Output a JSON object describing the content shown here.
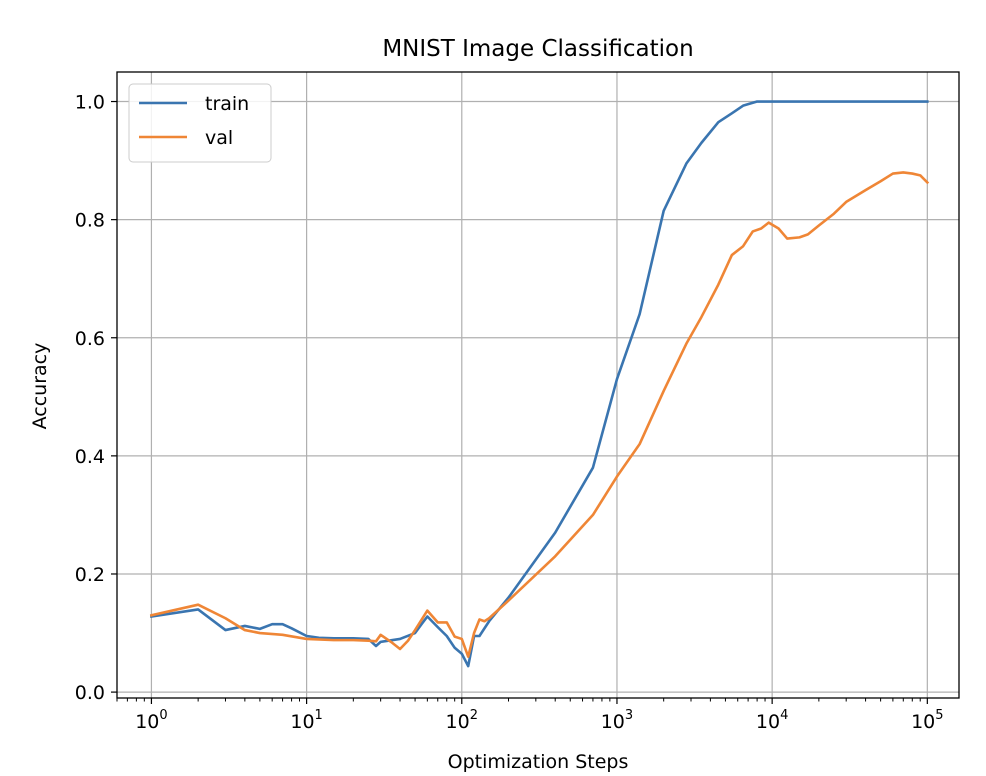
{
  "chart_data": {
    "type": "line",
    "title": "MNIST Image Classification",
    "xlabel": "Optimization Steps",
    "ylabel": "Accuracy",
    "xscale": "log",
    "xlim": [
      0.6,
      160000
    ],
    "ylim": [
      -0.01,
      1.05
    ],
    "grid": true,
    "legend": "top-left",
    "x_ticks": [
      {
        "value": 1,
        "label": "10",
        "exp": "0"
      },
      {
        "value": 10,
        "label": "10",
        "exp": "1"
      },
      {
        "value": 100,
        "label": "10",
        "exp": "2"
      },
      {
        "value": 1000,
        "label": "10",
        "exp": "3"
      },
      {
        "value": 10000,
        "label": "10",
        "exp": "4"
      },
      {
        "value": 100000,
        "label": "10",
        "exp": "5"
      }
    ],
    "y_ticks": [
      {
        "value": 0.0,
        "label": "0.0"
      },
      {
        "value": 0.2,
        "label": "0.2"
      },
      {
        "value": 0.4,
        "label": "0.4"
      },
      {
        "value": 0.6,
        "label": "0.6"
      },
      {
        "value": 0.8,
        "label": "0.8"
      },
      {
        "value": 1.0,
        "label": "1.0"
      }
    ],
    "series": [
      {
        "name": "train",
        "color": "#3a75b0",
        "points": [
          [
            1,
            0.128
          ],
          [
            2,
            0.14
          ],
          [
            3,
            0.105
          ],
          [
            4,
            0.112
          ],
          [
            5,
            0.107
          ],
          [
            6,
            0.115
          ],
          [
            7,
            0.115
          ],
          [
            8,
            0.108
          ],
          [
            10,
            0.095
          ],
          [
            12,
            0.092
          ],
          [
            15,
            0.091
          ],
          [
            20,
            0.091
          ],
          [
            25,
            0.09
          ],
          [
            28,
            0.078
          ],
          [
            30,
            0.085
          ],
          [
            40,
            0.09
          ],
          [
            50,
            0.1
          ],
          [
            55,
            0.115
          ],
          [
            60,
            0.128
          ],
          [
            70,
            0.11
          ],
          [
            80,
            0.095
          ],
          [
            90,
            0.075
          ],
          [
            100,
            0.065
          ],
          [
            110,
            0.044
          ],
          [
            120,
            0.095
          ],
          [
            130,
            0.095
          ],
          [
            150,
            0.12
          ],
          [
            200,
            0.16
          ],
          [
            400,
            0.27
          ],
          [
            700,
            0.38
          ],
          [
            1000,
            0.53
          ],
          [
            1400,
            0.64
          ],
          [
            2000,
            0.815
          ],
          [
            2800,
            0.895
          ],
          [
            3500,
            0.93
          ],
          [
            4500,
            0.965
          ],
          [
            5500,
            0.98
          ],
          [
            6500,
            0.993
          ],
          [
            8000,
            1.0
          ],
          [
            10000,
            1.0
          ],
          [
            20000,
            1.0
          ],
          [
            50000,
            1.0
          ],
          [
            100000,
            1.0
          ]
        ]
      },
      {
        "name": "val",
        "color": "#ef8636",
        "points": [
          [
            1,
            0.13
          ],
          [
            2,
            0.148
          ],
          [
            3,
            0.125
          ],
          [
            4,
            0.105
          ],
          [
            5,
            0.1
          ],
          [
            7,
            0.097
          ],
          [
            10,
            0.09
          ],
          [
            15,
            0.088
          ],
          [
            20,
            0.088
          ],
          [
            25,
            0.087
          ],
          [
            28,
            0.086
          ],
          [
            30,
            0.097
          ],
          [
            35,
            0.085
          ],
          [
            40,
            0.073
          ],
          [
            45,
            0.087
          ],
          [
            50,
            0.105
          ],
          [
            60,
            0.138
          ],
          [
            70,
            0.118
          ],
          [
            80,
            0.118
          ],
          [
            90,
            0.094
          ],
          [
            100,
            0.09
          ],
          [
            110,
            0.06
          ],
          [
            120,
            0.1
          ],
          [
            130,
            0.123
          ],
          [
            140,
            0.12
          ],
          [
            150,
            0.125
          ],
          [
            200,
            0.155
          ],
          [
            400,
            0.23
          ],
          [
            700,
            0.3
          ],
          [
            1000,
            0.365
          ],
          [
            1400,
            0.42
          ],
          [
            2000,
            0.51
          ],
          [
            2800,
            0.59
          ],
          [
            3500,
            0.635
          ],
          [
            4500,
            0.69
          ],
          [
            5500,
            0.74
          ],
          [
            6500,
            0.755
          ],
          [
            7500,
            0.78
          ],
          [
            8500,
            0.785
          ],
          [
            9500,
            0.795
          ],
          [
            11000,
            0.785
          ],
          [
            12500,
            0.768
          ],
          [
            15000,
            0.77
          ],
          [
            17000,
            0.775
          ],
          [
            20000,
            0.79
          ],
          [
            25000,
            0.81
          ],
          [
            30000,
            0.83
          ],
          [
            40000,
            0.85
          ],
          [
            50000,
            0.865
          ],
          [
            60000,
            0.878
          ],
          [
            70000,
            0.88
          ],
          [
            80000,
            0.878
          ],
          [
            90000,
            0.875
          ],
          [
            100000,
            0.863
          ]
        ]
      }
    ]
  }
}
